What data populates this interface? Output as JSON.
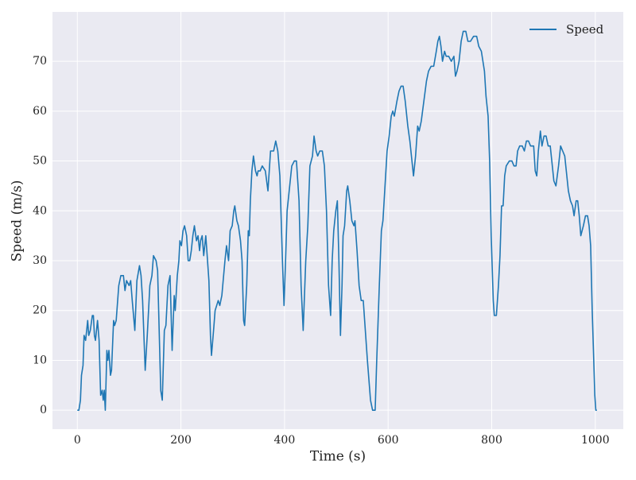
{
  "chart_data": {
    "type": "line",
    "xlabel": "Time (s)",
    "ylabel": "Speed (m/s)",
    "x": [
      0,
      3,
      6,
      8,
      11,
      13,
      16,
      18,
      20,
      22,
      25,
      29,
      31,
      33,
      35,
      39,
      42,
      45,
      48,
      50,
      52,
      54,
      57,
      59,
      61,
      64,
      66,
      70,
      72,
      75,
      80,
      84,
      89,
      92,
      95,
      100,
      103,
      106,
      111,
      115,
      120,
      123,
      126,
      131,
      135,
      140,
      144,
      147,
      152,
      155,
      161,
      164,
      168,
      171,
      175,
      179,
      183,
      187,
      189,
      193,
      196,
      198,
      201,
      204,
      207,
      211,
      214,
      217,
      220,
      223,
      226,
      230,
      233,
      236,
      238,
      241,
      244,
      248,
      250,
      254,
      257,
      259,
      263,
      266,
      272,
      275,
      279,
      285,
      288,
      292,
      295,
      299,
      302,
      304,
      308,
      311,
      315,
      318,
      321,
      323,
      327,
      330,
      332,
      334,
      337,
      340,
      344,
      347,
      349,
      353,
      357,
      363,
      368,
      373,
      379,
      383,
      387,
      391,
      396,
      399,
      402,
      405,
      410,
      414,
      419,
      423,
      428,
      432,
      436,
      441,
      445,
      449,
      454,
      457,
      461,
      464,
      468,
      473,
      477,
      481,
      485,
      489,
      492,
      495,
      499,
      502,
      505,
      508,
      511,
      513,
      516,
      520,
      522,
      526,
      530,
      534,
      536,
      540,
      544,
      548,
      552,
      556,
      560,
      566,
      570,
      575,
      578,
      583,
      587,
      590,
      594,
      598,
      602,
      606,
      609,
      612,
      617,
      621,
      625,
      629,
      633,
      638,
      642,
      646,
      649,
      653,
      657,
      660,
      664,
      669,
      674,
      678,
      683,
      688,
      693,
      696,
      699,
      702,
      705,
      709,
      712,
      717,
      722,
      727,
      730,
      733,
      737,
      741,
      745,
      750,
      754,
      759,
      765,
      771,
      775,
      780,
      786,
      789,
      793,
      796,
      799,
      803,
      805,
      809,
      813,
      816,
      819,
      822,
      825,
      828,
      834,
      839,
      843,
      847,
      850,
      854,
      859,
      863,
      867,
      871,
      875,
      881,
      884,
      887,
      890,
      894,
      897,
      901,
      905,
      909,
      913,
      917,
      920,
      924,
      929,
      933,
      937,
      941,
      944,
      948,
      952,
      956,
      959,
      963,
      966,
      969,
      972,
      977,
      981,
      985,
      988,
      991,
      994,
      997,
      999,
      1001,
      1003
    ],
    "series": [
      {
        "name": "Speed",
        "color": "#1f77b4",
        "values": [
          0,
          0,
          2,
          7,
          9,
          15,
          14,
          16,
          18,
          15,
          16,
          19,
          19,
          15,
          14,
          18,
          14,
          3,
          4,
          2,
          4,
          0,
          12,
          10,
          12,
          7,
          8,
          18,
          17,
          18,
          25,
          27,
          27,
          24,
          26,
          25,
          26,
          22,
          16,
          26,
          29,
          27,
          22,
          8,
          15,
          25,
          27,
          31,
          30,
          28,
          4,
          2,
          16,
          17,
          25,
          27,
          12,
          23,
          20,
          27,
          30,
          34,
          33,
          36,
          37,
          35,
          30,
          30,
          32,
          35,
          37,
          34,
          35,
          32,
          34,
          35,
          31,
          35,
          32,
          26,
          15,
          11,
          16,
          20,
          22,
          21,
          23,
          30,
          33,
          30,
          36,
          37,
          40,
          41,
          38,
          37,
          34,
          30,
          18,
          17,
          25,
          36,
          35,
          42,
          48,
          51,
          48,
          47,
          48,
          48,
          49,
          48,
          44,
          52,
          52,
          54,
          52,
          47,
          30,
          21,
          30,
          40,
          45,
          49,
          50,
          50,
          42,
          25,
          16,
          30,
          37,
          49,
          51,
          55,
          52,
          51,
          52,
          52,
          49,
          40,
          25,
          19,
          30,
          36,
          40,
          42,
          30,
          15,
          25,
          35,
          37,
          44,
          45,
          42,
          38,
          37,
          38,
          32,
          25,
          22,
          22,
          16,
          10,
          2,
          0,
          0,
          10,
          25,
          36,
          38,
          45,
          52,
          55,
          59,
          60,
          59,
          62,
          64,
          65,
          65,
          62,
          57,
          54,
          50,
          47,
          51,
          57,
          56,
          58,
          62,
          66,
          68,
          69,
          69,
          72,
          74,
          75,
          73,
          70,
          72,
          71,
          71,
          70,
          71,
          67,
          68,
          70,
          74,
          76,
          76,
          74,
          74,
          75,
          75,
          73,
          72,
          68,
          63,
          59,
          50,
          35,
          22,
          19,
          19,
          25,
          31,
          41,
          41,
          47,
          49,
          50,
          50,
          49,
          49,
          52,
          53,
          53,
          52,
          54,
          54,
          53,
          53,
          48,
          47,
          52,
          56,
          53,
          55,
          55,
          53,
          53,
          49,
          46,
          45,
          49,
          53,
          52,
          51,
          48,
          44,
          42,
          41,
          39,
          42,
          42,
          39,
          35,
          37,
          39,
          39,
          37,
          33,
          20,
          10,
          3,
          0,
          0
        ]
      }
    ],
    "xlim": [
      -48,
      1054
    ],
    "ylim": [
      -3.8,
      79.9
    ],
    "xticks": [
      0,
      200,
      400,
      600,
      800,
      1000
    ],
    "yticks": [
      0,
      10,
      20,
      30,
      40,
      50,
      60,
      70
    ],
    "grid": true,
    "legend": "upper right"
  }
}
